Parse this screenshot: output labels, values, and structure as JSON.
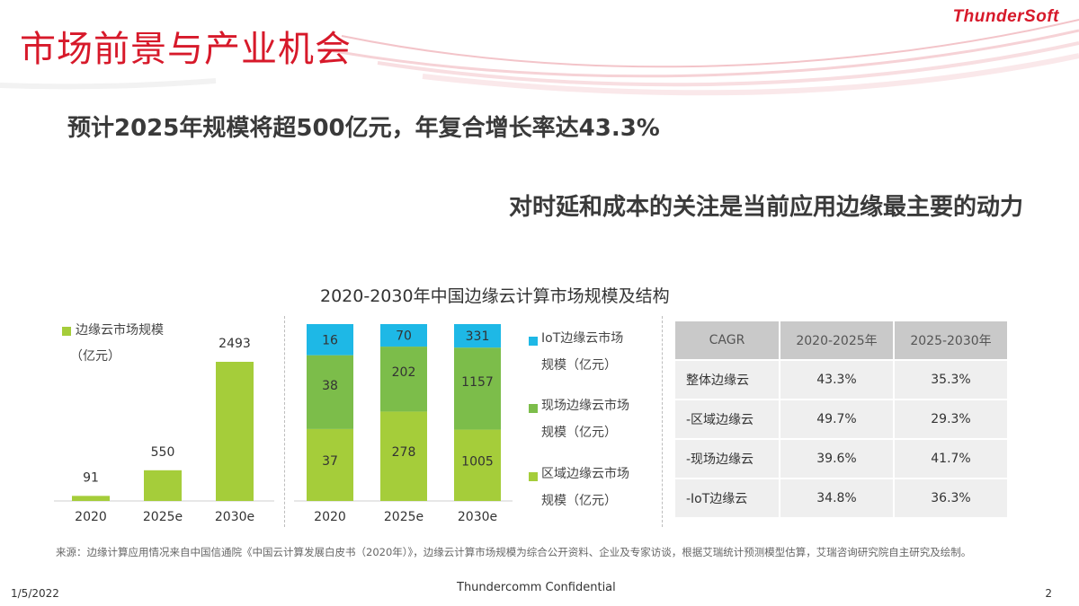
{
  "header": {
    "title": "市场前景与产业机会",
    "logo_text": "ThunderSoft"
  },
  "headlines": {
    "line1": "预计2025年规模将超500亿元，年复合增长率达43.3%",
    "line2": "对时延和成本的关注是当前应用边缘最主要的动力"
  },
  "chart_title": "2020-2030年中国边缘云计算市场规模及结构",
  "colors": {
    "brand_red": "#d7192a",
    "bar_lime": "#a5cd3a",
    "bar_green": "#7cbd4a",
    "bar_cyan": "#1eb8e6"
  },
  "chart_data": [
    {
      "type": "bar",
      "categories": [
        "2020",
        "2025e",
        "2030e"
      ],
      "series": [
        {
          "name": "边缘云市场规模（亿元）",
          "values": [
            91,
            550,
            2493
          ]
        }
      ],
      "legend": {
        "label_line1": "边缘云市场规模",
        "label_line2": "（亿元）",
        "placement": "top-left"
      }
    },
    {
      "type": "bar",
      "stacked": true,
      "normalized": true,
      "categories": [
        "2020",
        "2025e",
        "2030e"
      ],
      "series": [
        {
          "name": "区域边缘云市场规模（亿元）",
          "values": [
            37,
            278,
            1005
          ]
        },
        {
          "name": "现场边缘云市场规模（亿元）",
          "values": [
            38,
            202,
            1157
          ]
        },
        {
          "name": "IoT边缘云市场规模（亿元）",
          "values": [
            16,
            70,
            331
          ]
        }
      ],
      "legend": [
        {
          "line1": "IoT边缘云市场",
          "line2": "规模（亿元）"
        },
        {
          "line1": "现场边缘云市场",
          "line2": "规模（亿元）"
        },
        {
          "line1": "区域边缘云市场",
          "line2": "规模（亿元）"
        }
      ]
    }
  ],
  "cagr_table": {
    "headers": [
      "CAGR",
      "2020-2025年",
      "2025-2030年"
    ],
    "rows": [
      [
        "整体边缘云",
        "43.3%",
        "35.3%"
      ],
      [
        "-区域边缘云",
        "49.7%",
        "29.3%"
      ],
      [
        "-现场边缘云",
        "39.6%",
        "41.7%"
      ],
      [
        "-IoT边缘云",
        "34.8%",
        "36.3%"
      ]
    ]
  },
  "source_note": "来源：边缘计算应用情况来自中国信通院《中国云计算发展白皮书（2020年）》，边缘云计算市场规模为综合公开资料、企业及专家访谈，根据艾瑞统计预测模型估算，艾瑞咨询研究院自主研究及绘制。",
  "footer": {
    "date": "1/5/2022",
    "confidential": "Thundercomm Confidential",
    "page_number": "2"
  }
}
